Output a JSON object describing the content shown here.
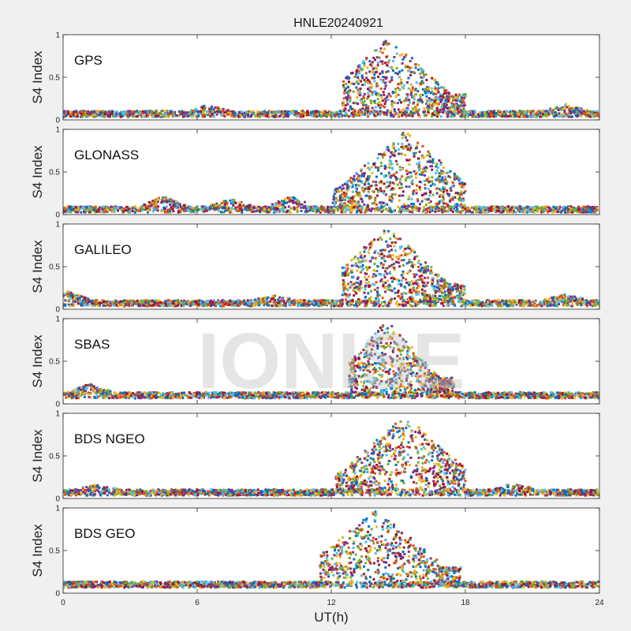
{
  "figure": {
    "title": "HNLE20240921",
    "xlabel": "UT(h)",
    "ylabel": "S4 Index",
    "watermark": "IONISE",
    "background": "#f0f0f0",
    "axes_background": "#ffffff"
  },
  "chart_data": {
    "type": "scatter",
    "title": "HNLE20240921",
    "xlabel": "UT(h)",
    "ylabel": "S4 Index",
    "xlim": [
      0,
      24
    ],
    "ylim": [
      0,
      1
    ],
    "xticks": [
      "0",
      "6",
      "12",
      "18",
      "24"
    ],
    "yticks": [
      "0",
      "0.5",
      "1"
    ],
    "grid": false,
    "colors": [
      "#0072bd",
      "#d95319",
      "#edb120",
      "#7e2f8e",
      "#77ac30",
      "#4dbeee",
      "#a2142f"
    ],
    "panels": [
      {
        "label": "GPS",
        "background_level": 0.07,
        "quiet_peaks": [
          {
            "t": 6.5,
            "v": 0.14
          },
          {
            "t": 22.5,
            "v": 0.15
          }
        ],
        "storm": {
          "start": 12.5,
          "end": 18.0,
          "peak_time": 14.6,
          "peak_value": 0.95,
          "mean": 0.45
        }
      },
      {
        "label": "GLONASS",
        "background_level": 0.06,
        "quiet_peaks": [
          {
            "t": 4.5,
            "v": 0.18
          },
          {
            "t": 7.5,
            "v": 0.15
          },
          {
            "t": 10.2,
            "v": 0.18
          }
        ],
        "storm": {
          "start": 12.0,
          "end": 18.0,
          "peak_time": 15.3,
          "peak_value": 0.95,
          "mean": 0.35
        }
      },
      {
        "label": "GALILEO",
        "background_level": 0.07,
        "quiet_peaks": [
          {
            "t": 0.2,
            "v": 0.18
          },
          {
            "t": 9.5,
            "v": 0.13
          },
          {
            "t": 22.5,
            "v": 0.14
          }
        ],
        "storm": {
          "start": 12.5,
          "end": 18.0,
          "peak_time": 14.5,
          "peak_value": 0.95,
          "mean": 0.42
        }
      },
      {
        "label": "SBAS",
        "background_level": 0.1,
        "quiet_peaks": [
          {
            "t": 1.2,
            "v": 0.2
          }
        ],
        "storm": {
          "start": 12.8,
          "end": 17.5,
          "peak_time": 14.5,
          "peak_value": 0.95,
          "mean": 0.45
        }
      },
      {
        "label": "BDS NGEO",
        "background_level": 0.07,
        "quiet_peaks": [
          {
            "t": 1.5,
            "v": 0.13
          },
          {
            "t": 20.2,
            "v": 0.15
          }
        ],
        "storm": {
          "start": 12.2,
          "end": 18.0,
          "peak_time": 15.3,
          "peak_value": 0.95,
          "mean": 0.38
        }
      },
      {
        "label": "BDS GEO",
        "background_level": 0.1,
        "quiet_peaks": [],
        "storm": {
          "start": 11.5,
          "end": 17.8,
          "peak_time": 14.0,
          "peak_value": 0.95,
          "mean": 0.45
        }
      }
    ]
  }
}
